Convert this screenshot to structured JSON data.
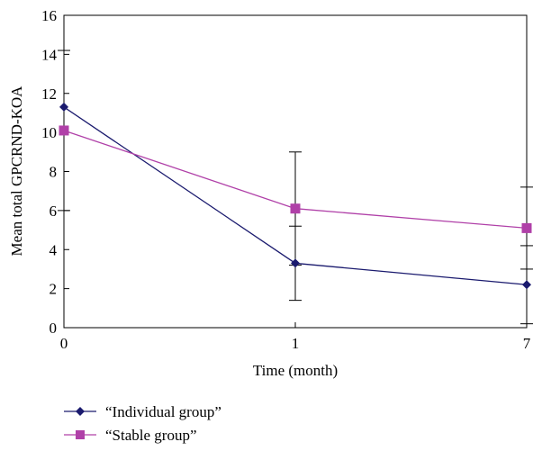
{
  "chart_data": {
    "type": "line",
    "title": "",
    "xlabel": "Time (month)",
    "ylabel": "Mean total GPCRND-KOA",
    "categories": [
      "0",
      "1",
      "7"
    ],
    "ylim": [
      0,
      16
    ],
    "yticks": [
      "0",
      "2",
      "4",
      "6",
      "8",
      "10",
      "12",
      "14",
      "16"
    ],
    "grid": false,
    "legend_position": "bottom-left",
    "series": [
      {
        "name": "“Individual group”",
        "color": "#1a1a6e",
        "marker": "diamond",
        "values": [
          11.3,
          3.3,
          2.2
        ],
        "error": [
          null,
          1.9,
          2.0
        ]
      },
      {
        "name": "“Stable group”",
        "color": "#b040a8",
        "marker": "square",
        "values": [
          10.1,
          6.1,
          5.1
        ],
        "error": [
          4.1,
          2.9,
          2.1
        ]
      }
    ]
  }
}
